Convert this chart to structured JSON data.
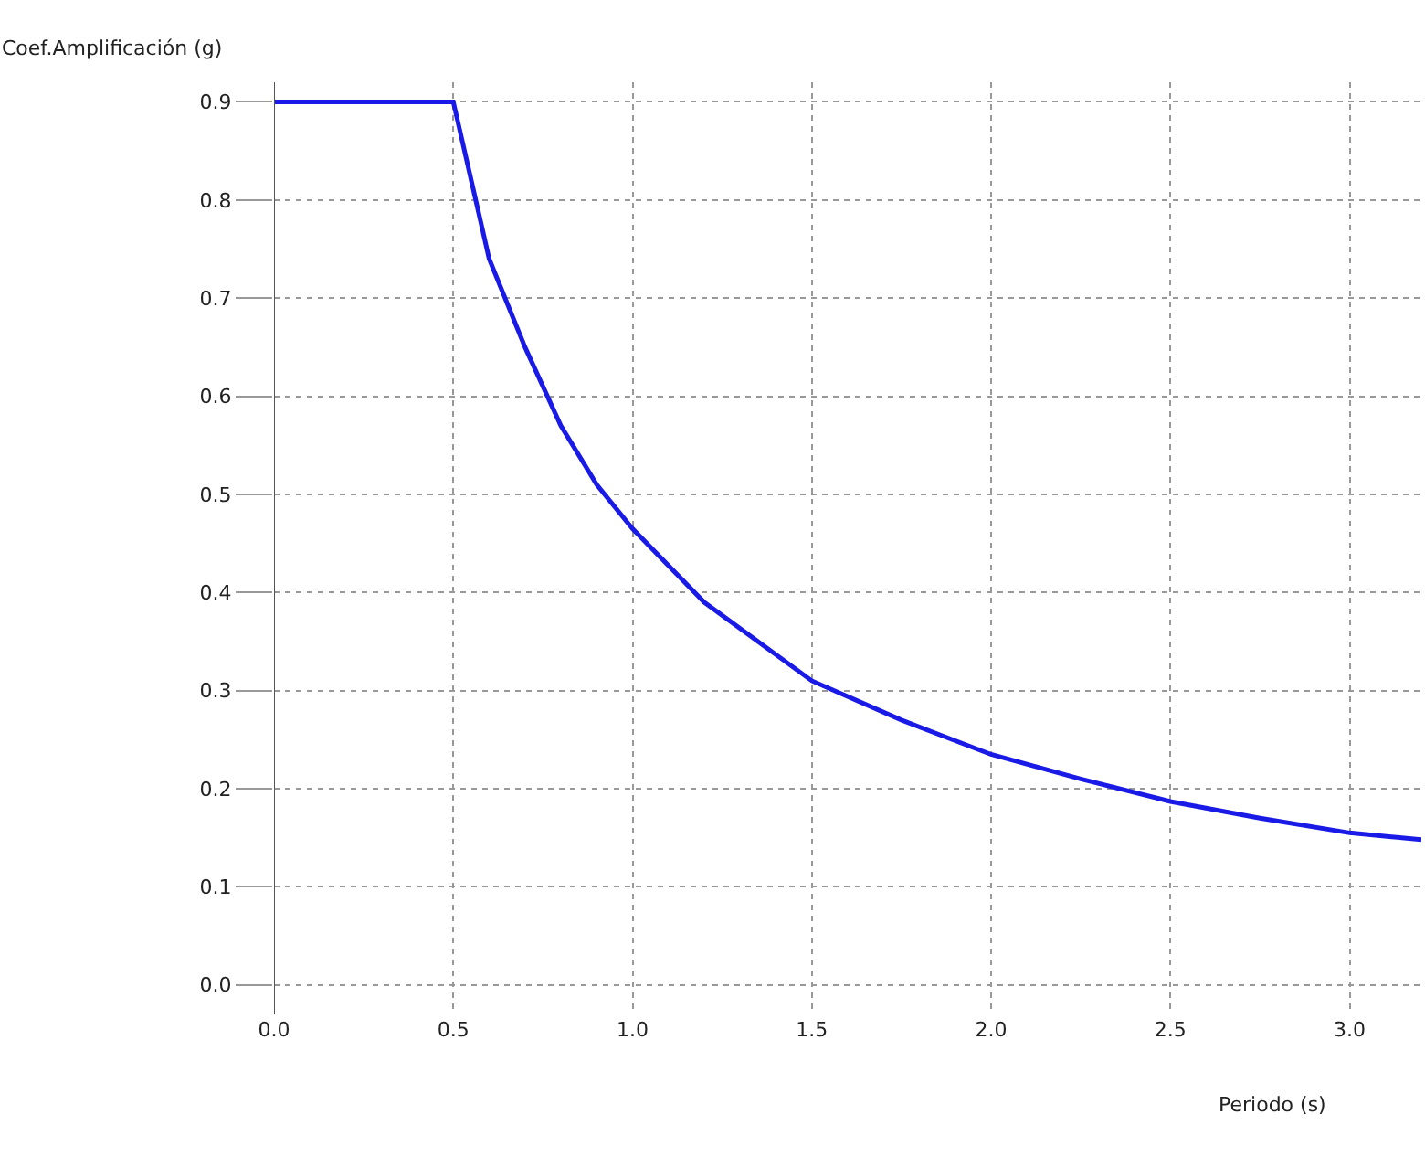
{
  "chart_data": {
    "type": "line",
    "ylabel": "Coef.Amplificación (g)",
    "xlabel": "Periodo (s)",
    "x": [
      0,
      0.5,
      0.55,
      0.6,
      0.7,
      0.8,
      0.9,
      1.0,
      1.2,
      1.5,
      1.75,
      2.0,
      2.25,
      2.5,
      2.75,
      3.0,
      3.2
    ],
    "series": [
      {
        "color": "#1a1ae6",
        "values": [
          0.9,
          0.9,
          0.82,
          0.74,
          0.65,
          0.57,
          0.51,
          0.465,
          0.39,
          0.31,
          0.27,
          0.235,
          0.21,
          0.187,
          0.17,
          0.155,
          0.148
        ]
      }
    ],
    "xlim": [
      0,
      3.2
    ],
    "ylim": [
      -0.03,
      0.92
    ],
    "xticks": [
      {
        "value": 0,
        "label": "0.0"
      },
      0.5,
      {
        "value": 1,
        "label": "1.0"
      },
      1.5,
      {
        "value": 2,
        "label": "2.0"
      },
      2.5,
      {
        "value": 3,
        "label": "3.0"
      }
    ],
    "yticks": [
      {
        "value": 0,
        "label": "0.0"
      },
      0.1,
      0.2,
      0.3,
      0.4,
      0.5,
      0.6,
      0.7,
      0.8,
      0.9
    ],
    "grid": true,
    "line_style": "solid",
    "marker": "none",
    "legend": false
  }
}
